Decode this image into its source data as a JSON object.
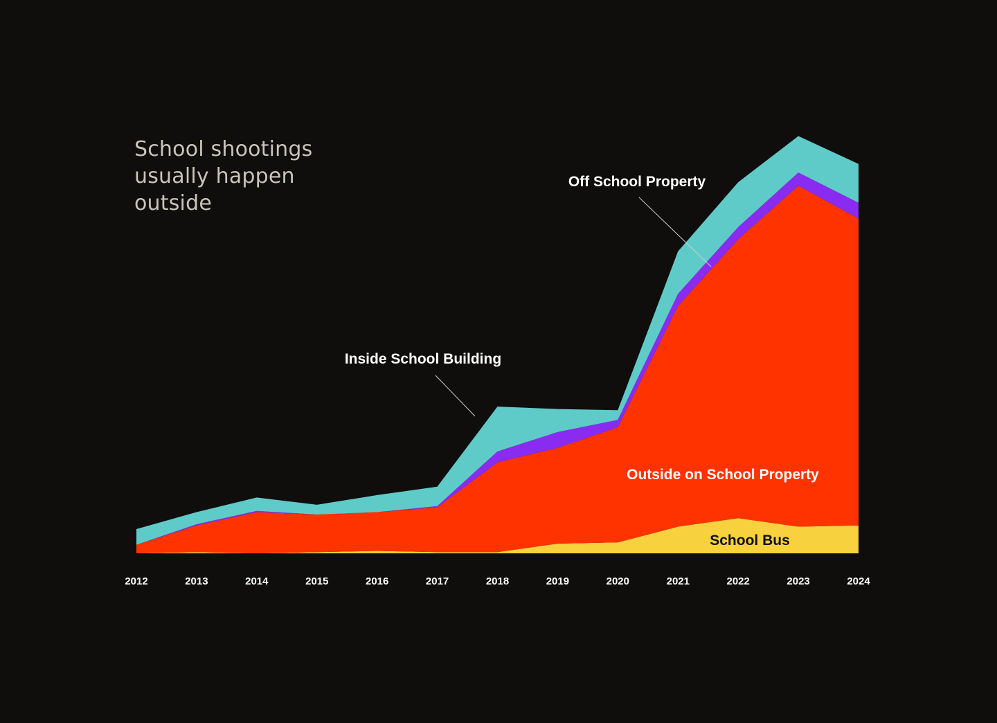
{
  "chart_data": {
    "type": "area",
    "stacked": true,
    "title": "School shootings usually happen outside",
    "xlabel": "",
    "ylabel": "",
    "x": [
      2012,
      2013,
      2014,
      2015,
      2016,
      2017,
      2018,
      2019,
      2020,
      2021,
      2022,
      2023,
      2024
    ],
    "ylim": [
      0,
      350
    ],
    "grid": false,
    "legend": "inline labels",
    "series": [
      {
        "name": "School Bus",
        "color": "#f8d13f",
        "values": [
          0,
          1,
          0,
          1,
          2,
          1,
          1,
          8,
          9,
          22,
          29,
          22,
          23
        ]
      },
      {
        "name": "Outside on School Property",
        "color": "#ff3300",
        "values": [
          7,
          22,
          34,
          31,
          32,
          37,
          74,
          79,
          95,
          182,
          230,
          281,
          253
        ]
      },
      {
        "name": "Inside School Building",
        "color": "#8a2bf2",
        "values": [
          0,
          1,
          1,
          0,
          0,
          1,
          9,
          13,
          6,
          10,
          10,
          11,
          13
        ]
      },
      {
        "name": "Off School Property",
        "color": "#5fcbc8",
        "values": [
          13,
          10,
          11,
          8,
          14,
          16,
          37,
          19,
          8,
          35,
          37,
          30,
          32
        ]
      }
    ]
  }
}
